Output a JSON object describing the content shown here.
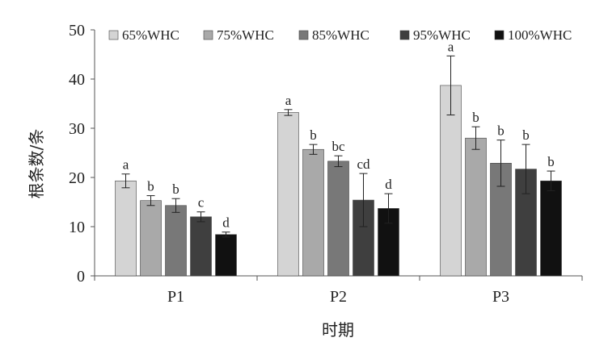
{
  "chart_data": {
    "type": "bar",
    "categories": [
      "P1",
      "P2",
      "P3"
    ],
    "xlabel": "时期",
    "ylabel": "根条数/条",
    "ylim": [
      0,
      50
    ],
    "yticks": [
      0,
      10,
      20,
      30,
      40,
      50
    ],
    "legend_position": "top",
    "grid": false,
    "series": [
      {
        "name": "65%WHC",
        "color": "#d4d4d4",
        "values": [
          19.3,
          33.2,
          38.7
        ],
        "errors": [
          1.4,
          0.6,
          6.0
        ],
        "labels": [
          "a",
          "a",
          "a"
        ]
      },
      {
        "name": "75%WHC",
        "color": "#a9a9a9",
        "values": [
          15.3,
          25.7,
          28.0
        ],
        "errors": [
          1.0,
          1.0,
          2.3
        ],
        "labels": [
          "b",
          "b",
          "b"
        ]
      },
      {
        "name": "85%WHC",
        "color": "#787878",
        "values": [
          14.3,
          23.3,
          22.9
        ],
        "errors": [
          1.4,
          1.1,
          4.7
        ],
        "labels": [
          "b",
          "bc",
          "b"
        ]
      },
      {
        "name": "95%WHC",
        "color": "#3f3f3f",
        "values": [
          12.0,
          15.4,
          21.7
        ],
        "errors": [
          1.0,
          5.4,
          5.0
        ],
        "labels": [
          "c",
          "cd",
          "b"
        ]
      },
      {
        "name": "100%WHC",
        "color": "#111111",
        "values": [
          8.4,
          13.7,
          19.3
        ],
        "errors": [
          0.5,
          3.0,
          2.0
        ],
        "labels": [
          "d",
          "d",
          "b"
        ]
      }
    ]
  }
}
